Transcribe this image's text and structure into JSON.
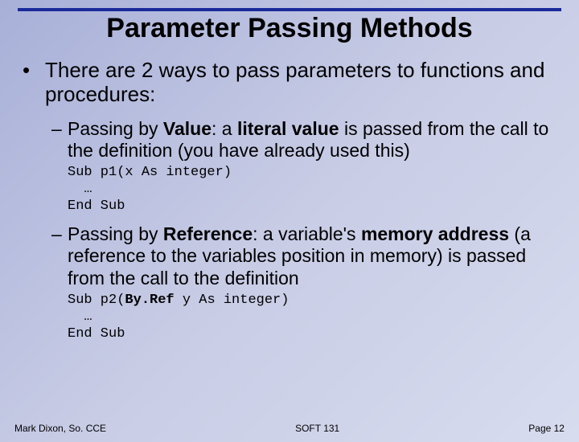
{
  "colors": {
    "rule": "#1a2a9a",
    "text": "#000000"
  },
  "title": {
    "text": "Parameter Passing Methods",
    "fontsize": 34,
    "weight": "bold"
  },
  "intro": {
    "bullet": "•",
    "text": "There are 2 ways to pass parameters to functions and procedures:",
    "fontsize": 26
  },
  "items": [
    {
      "dash": "–",
      "pre": "Passing by ",
      "kw": "Value",
      "post1": ": a ",
      "kw2": "literal value",
      "post2": " is passed from the call to the definition (you have already used this)",
      "fontsize": 23,
      "code": {
        "l1a": "Sub p1(x As integer)",
        "l2": "…",
        "l3": "End Sub",
        "fontsize": 17
      }
    },
    {
      "dash": "–",
      "pre": "Passing by ",
      "kw": "Reference",
      "post1": ": a variable's ",
      "kw2": "memory address",
      "post2": " (a reference to the variables position in memory) is passed from the call to the definition",
      "fontsize": 23,
      "code": {
        "l1a": "Sub p2(",
        "l1b": "By.Ref",
        "l1c": " y As integer)",
        "l2": "…",
        "l3": "End Sub",
        "fontsize": 17
      }
    }
  ],
  "footer": {
    "left": "Mark Dixon, So. CCE",
    "center": "SOFT 131",
    "right": "Page 12",
    "fontsize": 12
  }
}
